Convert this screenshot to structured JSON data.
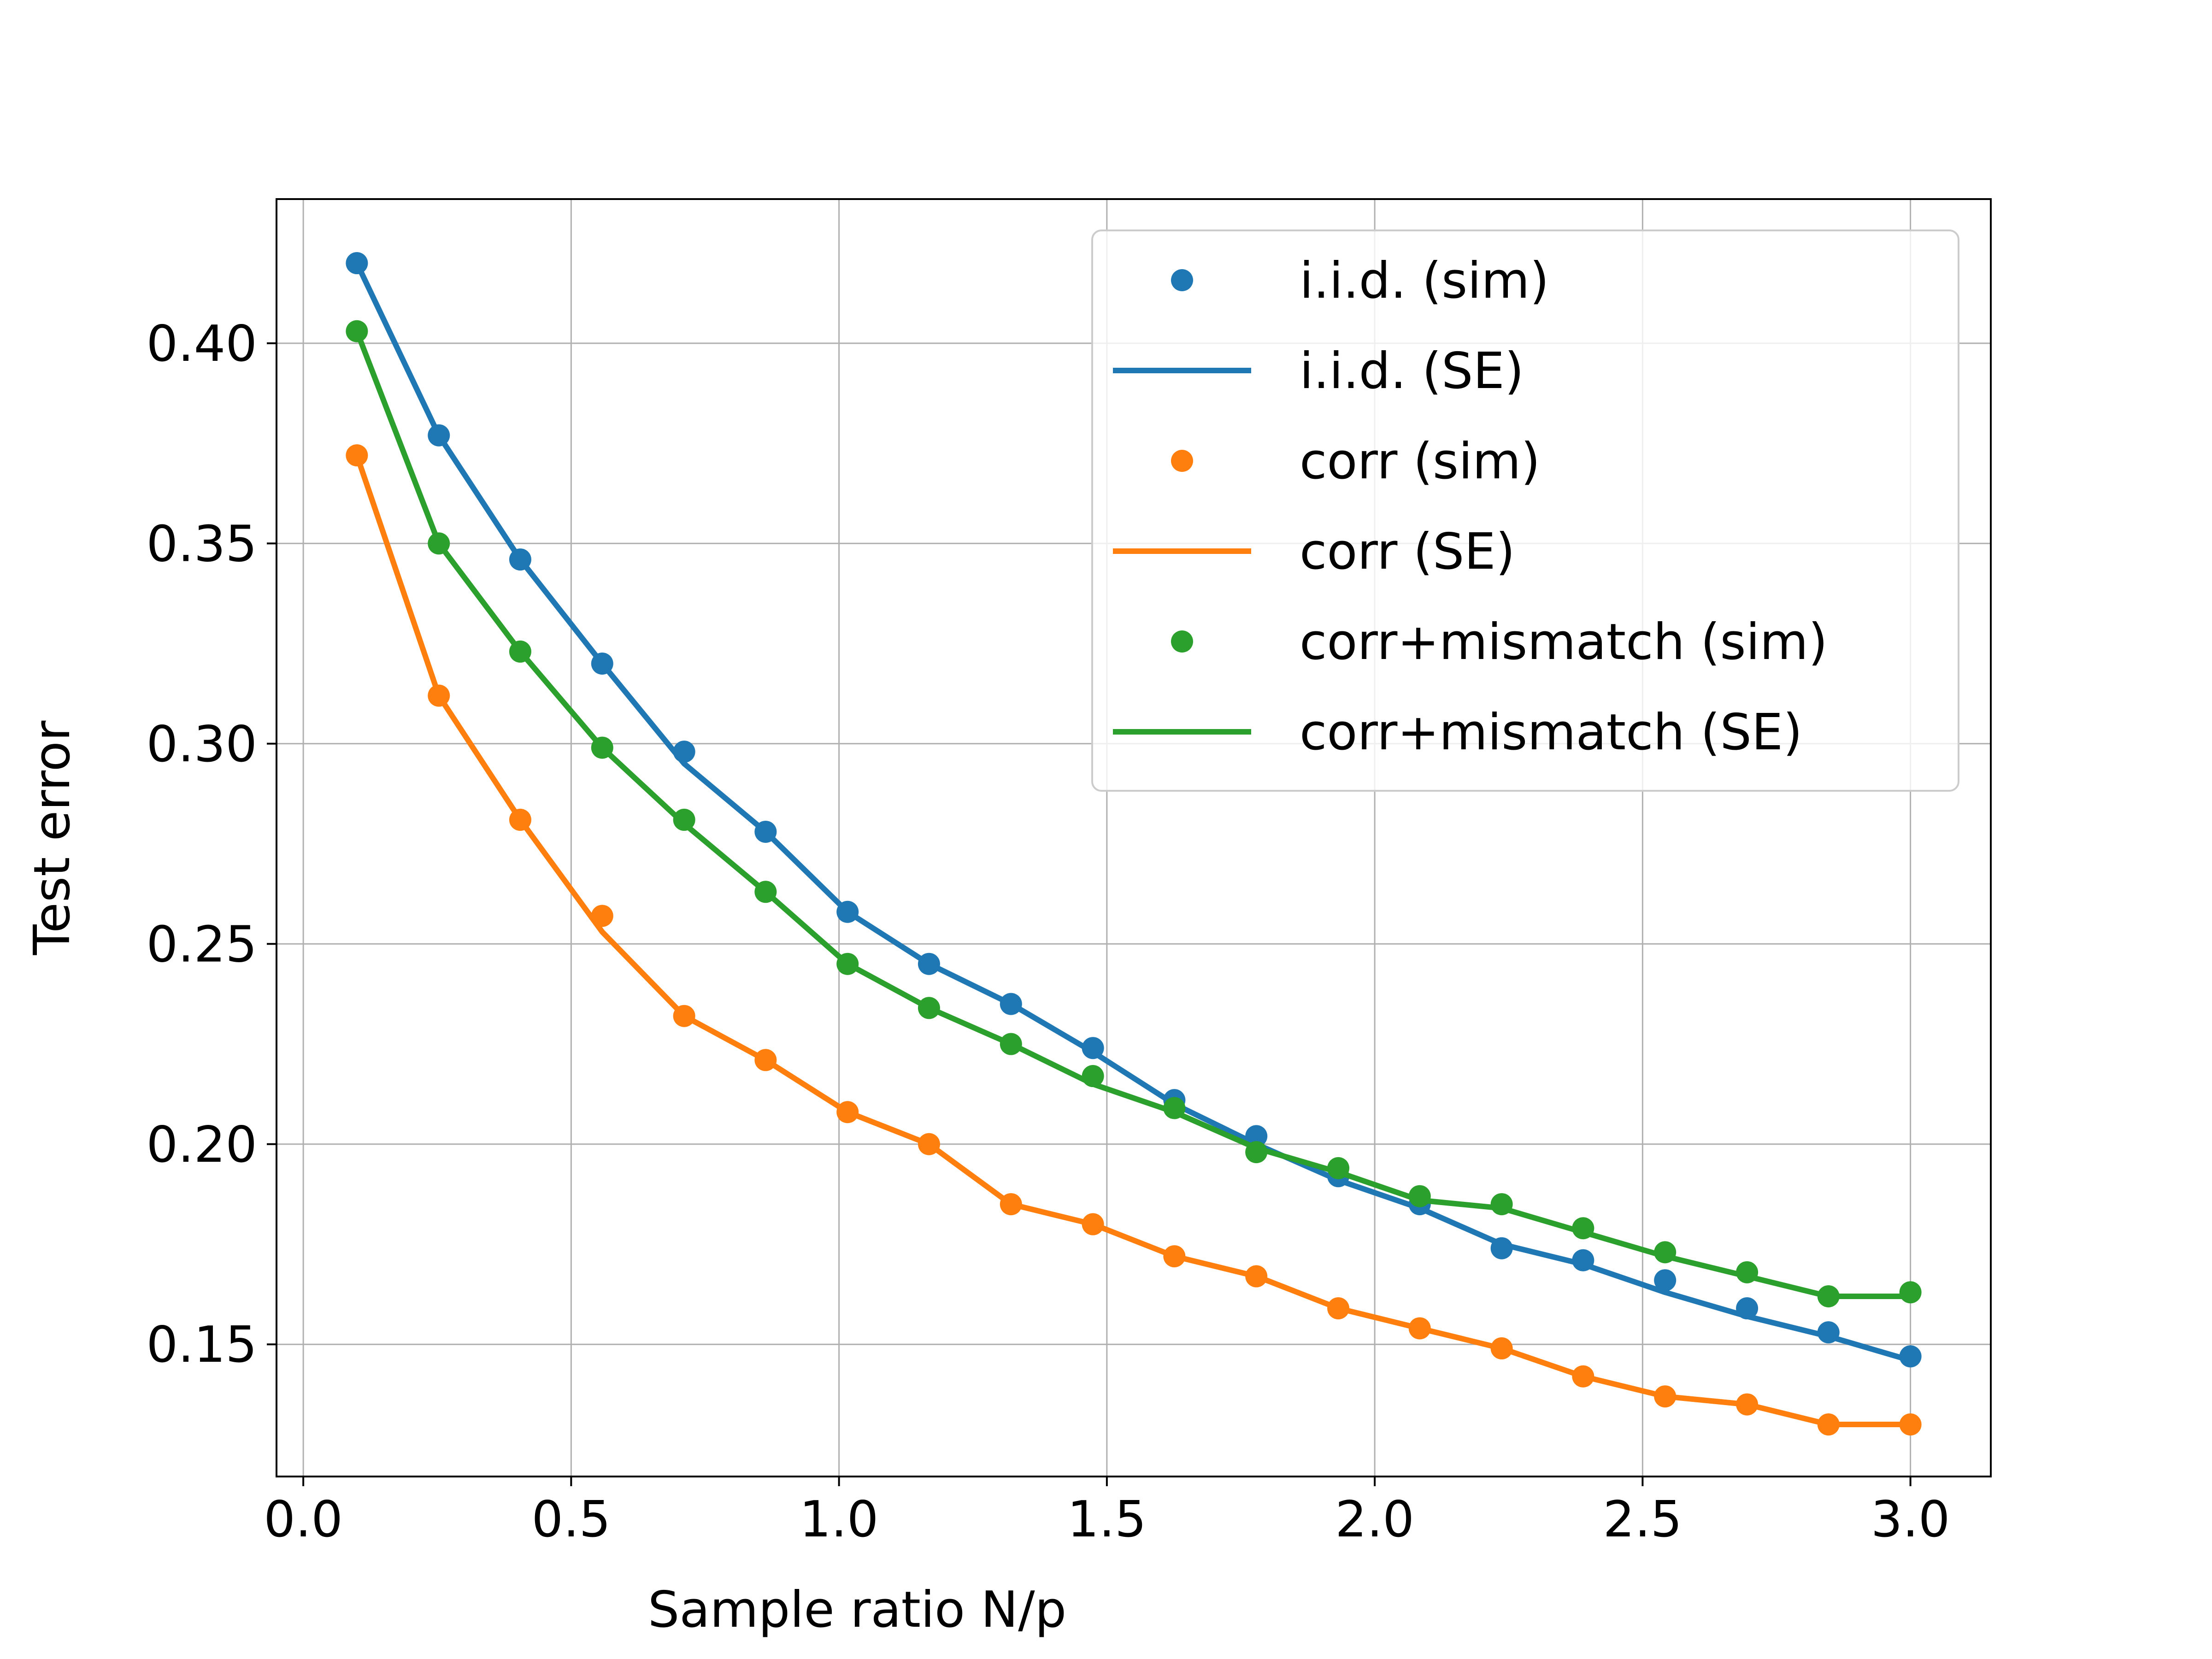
{
  "chart_data": {
    "type": "line",
    "title": "",
    "xlabel": "Sample ratio N/p",
    "ylabel": "Test error",
    "xlim": [
      -0.05,
      3.15
    ],
    "ylim": [
      0.117,
      0.436
    ],
    "xticks": [
      0.0,
      0.5,
      1.0,
      1.5,
      2.0,
      2.5,
      3.0
    ],
    "xtick_labels": [
      "0.0",
      "0.5",
      "1.0",
      "1.5",
      "2.0",
      "2.5",
      "3.0"
    ],
    "yticks": [
      0.15,
      0.2,
      0.25,
      0.3,
      0.35,
      0.4
    ],
    "ytick_labels": [
      "0.15",
      "0.20",
      "0.25",
      "0.30",
      "0.35",
      "0.40"
    ],
    "grid": true,
    "legend_position": "upper right",
    "x": [
      0.1,
      0.253,
      0.405,
      0.558,
      0.711,
      0.863,
      1.016,
      1.168,
      1.321,
      1.474,
      1.626,
      1.779,
      1.932,
      2.084,
      2.237,
      2.389,
      2.542,
      2.695,
      2.847,
      3.0
    ],
    "series": [
      {
        "name": "i.i.d. (sim)",
        "kind": "markers",
        "color": "#1f77b4",
        "values": [
          0.42,
          0.377,
          0.346,
          0.32,
          0.298,
          0.278,
          0.258,
          0.245,
          0.235,
          0.224,
          0.211,
          0.202,
          0.192,
          0.185,
          0.174,
          0.171,
          0.166,
          0.159,
          0.153,
          0.147
        ]
      },
      {
        "name": "i.i.d. (SE)",
        "kind": "line",
        "color": "#1f77b4",
        "values": [
          0.42,
          0.377,
          0.346,
          0.32,
          0.295,
          0.278,
          0.258,
          0.245,
          0.235,
          0.223,
          0.21,
          0.2,
          0.191,
          0.184,
          0.175,
          0.17,
          0.163,
          0.157,
          0.152,
          0.146
        ]
      },
      {
        "name": "corr (sim)",
        "kind": "markers",
        "color": "#ff7f0e",
        "values": [
          0.372,
          0.312,
          0.281,
          0.257,
          0.232,
          0.221,
          0.208,
          0.2,
          0.185,
          0.18,
          0.172,
          0.167,
          0.159,
          0.154,
          0.149,
          0.142,
          0.137,
          0.135,
          0.13,
          0.13
        ]
      },
      {
        "name": "corr (SE)",
        "kind": "line",
        "color": "#ff7f0e",
        "values": [
          0.372,
          0.312,
          0.281,
          0.253,
          0.232,
          0.221,
          0.208,
          0.2,
          0.185,
          0.18,
          0.172,
          0.167,
          0.159,
          0.154,
          0.149,
          0.142,
          0.137,
          0.135,
          0.13,
          0.13
        ]
      },
      {
        "name": "corr+mismatch (sim)",
        "kind": "markers",
        "color": "#2ca02c",
        "values": [
          0.403,
          0.35,
          0.323,
          0.299,
          0.281,
          0.263,
          0.245,
          0.234,
          0.225,
          0.217,
          0.209,
          0.198,
          0.194,
          0.187,
          0.185,
          0.179,
          0.173,
          0.168,
          0.162,
          0.163
        ]
      },
      {
        "name": "corr+mismatch (SE)",
        "kind": "line",
        "color": "#2ca02c",
        "values": [
          0.403,
          0.35,
          0.323,
          0.299,
          0.28,
          0.263,
          0.245,
          0.234,
          0.225,
          0.215,
          0.208,
          0.199,
          0.193,
          0.186,
          0.184,
          0.178,
          0.172,
          0.167,
          0.162,
          0.162
        ]
      }
    ]
  }
}
